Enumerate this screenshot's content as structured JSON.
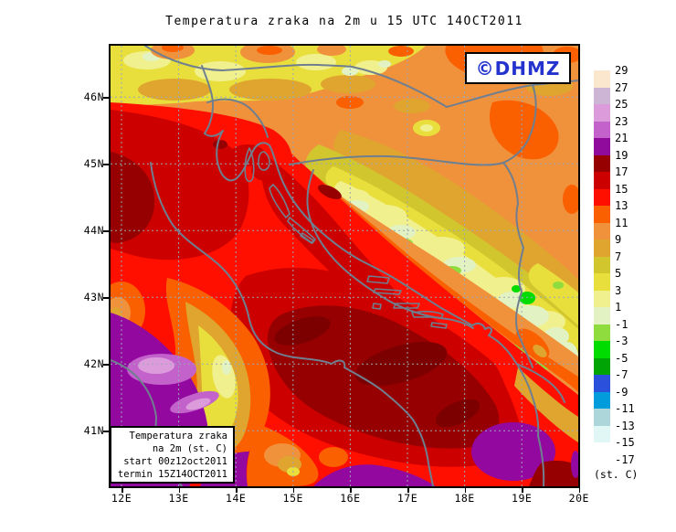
{
  "title": "Temperatura zraka na 2m u 15 UTC 14OCT2011",
  "badge": {
    "label": "©DHMZ",
    "text_color": "#2433CD"
  },
  "map": {
    "lat_labels": [
      "46N",
      "45N",
      "44N",
      "43N",
      "42N",
      "41N"
    ],
    "lon_labels": [
      "12E",
      "13E",
      "14E",
      "15E",
      "16E",
      "17E",
      "18E",
      "19E",
      "20E"
    ]
  },
  "colorbar": {
    "tick_labels": [
      "29",
      "27",
      "25",
      "23",
      "21",
      "19",
      "17",
      "15",
      "13",
      "11",
      "9",
      "7",
      "5",
      "3",
      "1",
      "-1",
      "-3",
      "-5",
      "-7",
      "-9",
      "-11",
      "-13",
      "-15",
      "-17"
    ],
    "band_colors": [
      "#FBE7CD",
      "#CDB6D5",
      "#DC9CDC",
      "#C462CC",
      "#900A9B",
      "#970000",
      "#CD0000",
      "#FF0F00",
      "#FA5F00",
      "#F0913C",
      "#DFA52F",
      "#D2C62E",
      "#E9DF3C",
      "#F1F08E",
      "#E2F2C2",
      "#8EDC3E",
      "#00DC00",
      "#00A404",
      "#2A50DC",
      "#009CDC",
      "#ACD6DA",
      "#E0F7F5",
      "#FFFFFF"
    ],
    "units_label": "(st. C)"
  },
  "info_box": {
    "lines": [
      "Temperatura zraka",
      "na 2m (st. C)",
      "start 00z12oct2011",
      "termin 15Z14OCT2011"
    ]
  },
  "palette": {
    "base": "#F0913C",
    "orange_red": "#FA5F00",
    "gold": "#DFA52F",
    "dark_yellow": "#D2C62E",
    "yellow": "#E9DF3C",
    "pale_yellow": "#F1F08E",
    "pale_green": "#E2F2C2",
    "yellow_green": "#8EDC3E",
    "green": "#00DC00",
    "red": "#FF0F00",
    "crimson": "#CD0000",
    "maroon": "#970000",
    "dark_maroon": "#7C0000",
    "purple": "#93089F",
    "orchid": "#C462CC",
    "lavender": "#DC9CDC",
    "border_gray": "#6F7F8F",
    "grid_gray": "#9AA8B6"
  }
}
